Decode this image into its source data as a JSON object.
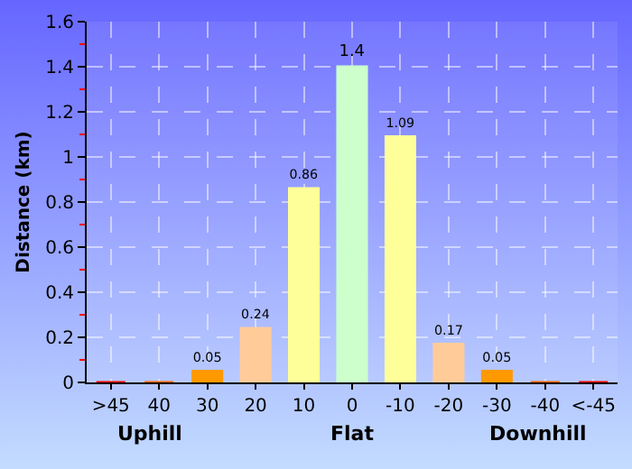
{
  "chart_data": {
    "type": "bar",
    "ylabel": "Distance (km)",
    "categories": [
      ">45",
      "40",
      "30",
      "20",
      "10",
      "0",
      "-10",
      "-20",
      "-30",
      "-40",
      "<-45"
    ],
    "values": [
      0,
      0,
      0.05,
      0.24,
      0.86,
      1.4,
      1.09,
      0.17,
      0.05,
      0,
      0
    ],
    "colors": [
      "#ff0000",
      "#ff6600",
      "#ff9900",
      "#ffcc99",
      "#ffff99",
      "#ccffcc",
      "#ffff99",
      "#ffcc99",
      "#ff9900",
      "#ff6600",
      "#ff0000"
    ],
    "value_labels": [
      null,
      null,
      "0.05",
      "0.24",
      "0.86",
      "1.4",
      "1.09",
      "0.17",
      "0.05",
      null,
      null
    ],
    "ylim": [
      0,
      1.6
    ],
    "yticks": [
      0,
      0.2,
      0.4,
      0.6,
      0.8,
      1,
      1.2,
      1.4,
      1.6
    ],
    "grid": true,
    "annotations": [
      "Uphill",
      "Flat",
      "Downhill"
    ]
  }
}
